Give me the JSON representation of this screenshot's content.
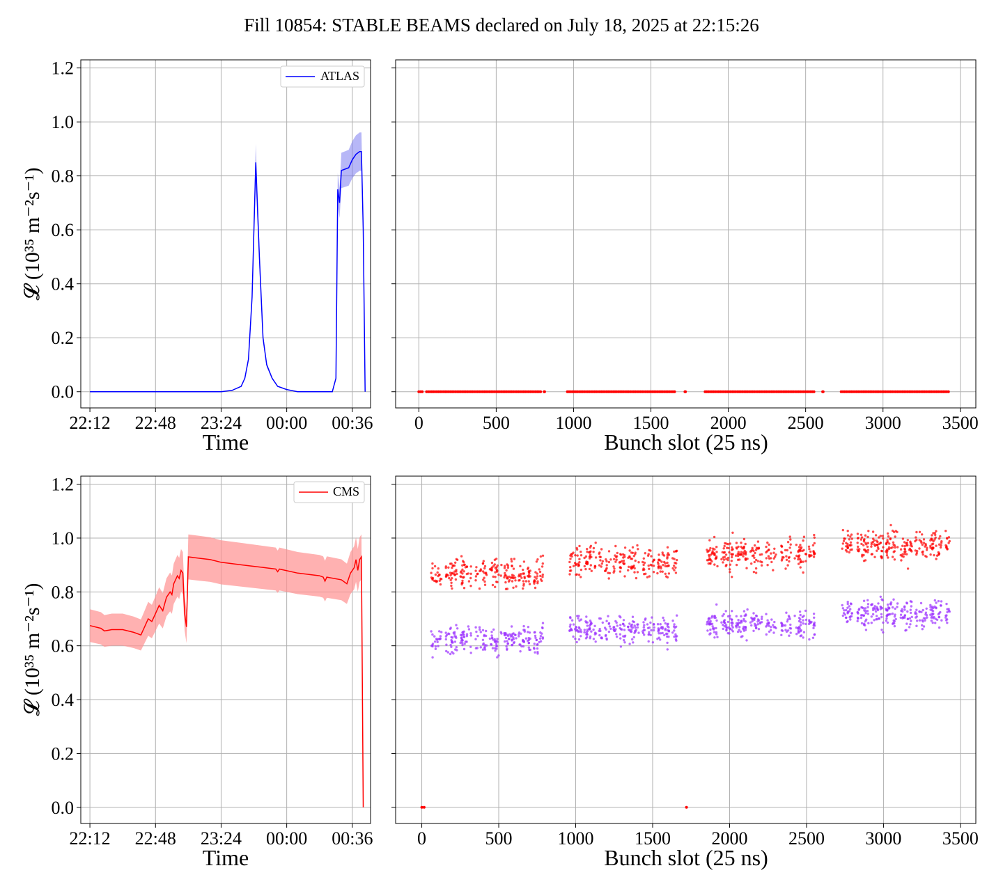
{
  "title": "Fill 10854: STABLE BEAMS declared on July 18, 2025 at 22:15:26",
  "colors": {
    "atlas": "#0000ff",
    "atlas_band": "#6f6ff0",
    "cms": "#ff0000",
    "cms_band": "#ff9090",
    "purple": "#9b30ff",
    "grid": "#b0b0b0"
  },
  "chart_data": [
    {
      "panel": "top-left",
      "type": "line",
      "title": "",
      "xlabel": "Time",
      "ylabel": "𝓛 (10³⁵ m⁻²s⁻¹)",
      "xlim": [
        "22:07",
        "00:46"
      ],
      "ylim": [
        -0.06,
        1.23
      ],
      "xticks": [
        "22:12",
        "22:48",
        "23:24",
        "00:00",
        "00:36"
      ],
      "yticks": [
        "0.0",
        "0.2",
        "0.4",
        "0.6",
        "0.8",
        "1.0",
        "1.2"
      ],
      "grid": true,
      "legend": {
        "placement": "upper-right",
        "entries": [
          "ATLAS"
        ]
      },
      "series": [
        {
          "name": "ATLAS",
          "color": "#0000ff",
          "band": true,
          "points": [
            [
              "22:12",
              0.0
            ],
            [
              "23:24",
              0.0
            ],
            [
              "23:30",
              0.005
            ],
            [
              "23:35",
              0.02
            ],
            [
              "23:37",
              0.05
            ],
            [
              "23:39",
              0.12
            ],
            [
              "23:41",
              0.35
            ],
            [
              "23:43",
              0.85
            ],
            [
              "23:45",
              0.5
            ],
            [
              "23:47",
              0.2
            ],
            [
              "23:49",
              0.1
            ],
            [
              "23:52",
              0.05
            ],
            [
              "23:55",
              0.02
            ],
            [
              "00:00",
              0.008
            ],
            [
              "00:06",
              0.0
            ],
            [
              "00:25",
              0.0
            ],
            [
              "00:27",
              0.05
            ],
            [
              "00:28",
              0.75
            ],
            [
              "00:29",
              0.7
            ],
            [
              "00:30",
              0.82
            ],
            [
              "00:34",
              0.83
            ],
            [
              "00:36",
              0.86
            ],
            [
              "00:38",
              0.88
            ],
            [
              "00:40",
              0.89
            ],
            [
              "00:41",
              0.89
            ],
            [
              "00:42",
              0.6
            ],
            [
              "00:43",
              0.0
            ]
          ]
        }
      ]
    },
    {
      "panel": "top-right",
      "type": "scatter",
      "title": "",
      "xlabel": "Bunch slot (25 ns)",
      "xlim": [
        -150,
        3600
      ],
      "ylim": [
        -0.06,
        1.23
      ],
      "xticks": [
        "0",
        "500",
        "1000",
        "1500",
        "2000",
        "2500",
        "3000",
        "3500"
      ],
      "grid": true,
      "series": [
        {
          "name": "",
          "color": "#ff0000",
          "y": 0.0,
          "note_x_ranges": [
            [
              0,
              30
            ],
            [
              50,
              790
            ],
            [
              810,
              815
            ],
            [
              960,
              1660
            ],
            [
              1720,
              1725
            ],
            [
              1850,
              2560
            ],
            [
              2610,
              2615
            ],
            [
              2730,
              3430
            ]
          ]
        }
      ]
    },
    {
      "panel": "bottom-left",
      "type": "line",
      "title": "",
      "xlabel": "Time",
      "ylabel": "𝓛 (10³⁵ m⁻²s⁻¹)",
      "xlim": [
        "22:07",
        "00:46"
      ],
      "ylim": [
        -0.06,
        1.23
      ],
      "xticks": [
        "22:12",
        "22:48",
        "23:24",
        "00:00",
        "00:36"
      ],
      "yticks": [
        "0.0",
        "0.2",
        "0.4",
        "0.6",
        "0.8",
        "1.0",
        "1.2"
      ],
      "grid": true,
      "legend": {
        "placement": "upper-right",
        "entries": [
          "CMS"
        ]
      },
      "series": [
        {
          "name": "CMS",
          "color": "#ff0000",
          "band": true,
          "points": [
            [
              "22:12",
              0.675
            ],
            [
              "22:18",
              0.665
            ],
            [
              "22:20",
              0.655
            ],
            [
              "22:24",
              0.66
            ],
            [
              "22:30",
              0.66
            ],
            [
              "22:36",
              0.65
            ],
            [
              "22:40",
              0.64
            ],
            [
              "22:42",
              0.67
            ],
            [
              "22:44",
              0.7
            ],
            [
              "22:46",
              0.69
            ],
            [
              "22:48",
              0.72
            ],
            [
              "22:50",
              0.75
            ],
            [
              "22:52",
              0.73
            ],
            [
              "22:54",
              0.78
            ],
            [
              "22:56",
              0.8
            ],
            [
              "22:57",
              0.79
            ],
            [
              "22:58",
              0.83
            ],
            [
              "23:00",
              0.86
            ],
            [
              "23:01",
              0.85
            ],
            [
              "23:02",
              0.88
            ],
            [
              "23:03",
              0.87
            ],
            [
              "23:04",
              0.72
            ],
            [
              "23:05",
              0.67
            ],
            [
              "23:06",
              0.93
            ],
            [
              "23:12",
              0.925
            ],
            [
              "23:18",
              0.92
            ],
            [
              "23:24",
              0.91
            ],
            [
              "23:36",
              0.9
            ],
            [
              "23:48",
              0.89
            ],
            [
              "23:54",
              0.885
            ],
            [
              "23:55",
              0.875
            ],
            [
              "23:56",
              0.885
            ],
            [
              "00:06",
              0.87
            ],
            [
              "00:18",
              0.86
            ],
            [
              "00:20",
              0.855
            ],
            [
              "00:21",
              0.84
            ],
            [
              "00:22",
              0.855
            ],
            [
              "00:30",
              0.845
            ],
            [
              "00:33",
              0.83
            ],
            [
              "00:35",
              0.87
            ],
            [
              "00:37",
              0.89
            ],
            [
              "00:38",
              0.92
            ],
            [
              "00:39",
              0.88
            ],
            [
              "00:40",
              0.92
            ],
            [
              "00:41",
              0.93
            ],
            [
              "00:42",
              0.0
            ]
          ]
        }
      ]
    },
    {
      "panel": "bottom-right",
      "type": "scatter",
      "title": "",
      "xlabel": "Bunch slot (25 ns)",
      "xlim": [
        -170,
        3600
      ],
      "ylim": [
        -0.06,
        1.23
      ],
      "xticks": [
        "0",
        "500",
        "1000",
        "1500",
        "2000",
        "2500",
        "3000",
        "3500"
      ],
      "grid": true,
      "groups_x": [
        [
          60,
          790
        ],
        [
          960,
          1660
        ],
        [
          1850,
          2560
        ],
        [
          2730,
          3430
        ]
      ],
      "series": [
        {
          "name": "",
          "color": "#ff0000",
          "centers": [
            0.865,
            0.91,
            0.94,
            0.975
          ],
          "spread": 0.055,
          "outliers_max": 1.17
        },
        {
          "name": "",
          "color": "#9b30ff",
          "centers": [
            0.625,
            0.66,
            0.68,
            0.72
          ],
          "spread": 0.05,
          "outliers_min": 0.44
        },
        {
          "name": "",
          "color": "#ff0000",
          "y": 0.0,
          "x": [
            0,
            15,
            1720
          ]
        }
      ]
    }
  ]
}
